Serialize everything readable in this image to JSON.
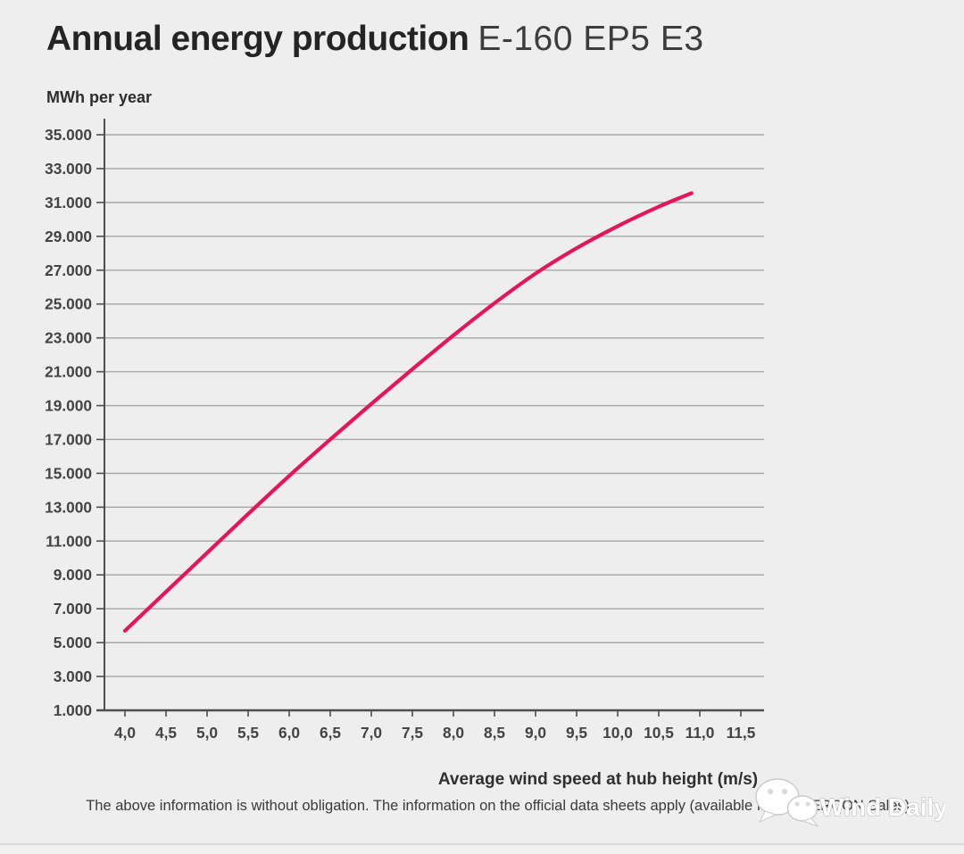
{
  "page": {
    "title_bold": "Annual energy production",
    "title_light": "E-160 EP5 E3"
  },
  "chart_data": {
    "type": "line",
    "title": "Annual energy production E-160 EP5 E3",
    "ylabel": "MWh per year",
    "xlabel": "Average wind speed at hub height (m/s)",
    "xlim": [
      3.75,
      11.9
    ],
    "ylim": [
      1000,
      35000
    ],
    "grid": "horizontal",
    "legend": "none",
    "y_ticks": [
      {
        "value": 1000,
        "label": "1.000"
      },
      {
        "value": 3000,
        "label": "3.000"
      },
      {
        "value": 5000,
        "label": "5.000"
      },
      {
        "value": 7000,
        "label": "7.000"
      },
      {
        "value": 9000,
        "label": "9.000"
      },
      {
        "value": 11000,
        "label": "11.000"
      },
      {
        "value": 13000,
        "label": "13.000"
      },
      {
        "value": 15000,
        "label": "15.000"
      },
      {
        "value": 17000,
        "label": "17.000"
      },
      {
        "value": 19000,
        "label": "19.000"
      },
      {
        "value": 21000,
        "label": "21.000"
      },
      {
        "value": 23000,
        "label": "23.000"
      },
      {
        "value": 25000,
        "label": "25.000"
      },
      {
        "value": 27000,
        "label": "27.000"
      },
      {
        "value": 29000,
        "label": "29.000"
      },
      {
        "value": 31000,
        "label": "31.000"
      },
      {
        "value": 33000,
        "label": "33.000"
      },
      {
        "value": 35000,
        "label": "35.000"
      }
    ],
    "x_ticks": [
      {
        "value": 4.0,
        "label": "4,0"
      },
      {
        "value": 4.5,
        "label": "4,5"
      },
      {
        "value": 5.0,
        "label": "5,0"
      },
      {
        "value": 5.5,
        "label": "5,5"
      },
      {
        "value": 6.0,
        "label": "6,0"
      },
      {
        "value": 6.5,
        "label": "6,5"
      },
      {
        "value": 7.0,
        "label": "7,0"
      },
      {
        "value": 7.5,
        "label": "7,5"
      },
      {
        "value": 8.0,
        "label": "8,0"
      },
      {
        "value": 8.5,
        "label": "8,5"
      },
      {
        "value": 9.0,
        "label": "9,0"
      },
      {
        "value": 9.5,
        "label": "9,5"
      },
      {
        "value": 10.0,
        "label": "10,0"
      },
      {
        "value": 10.5,
        "label": "10,5"
      },
      {
        "value": 11.0,
        "label": "11,0"
      },
      {
        "value": 11.5,
        "label": "11,5"
      }
    ],
    "series": [
      {
        "name": "Annual energy production E-160 EP5 E3",
        "color": "#e4155d",
        "points": [
          {
            "x": 4.0,
            "y": 5700
          },
          {
            "x": 4.5,
            "y": 8000
          },
          {
            "x": 5.0,
            "y": 10300
          },
          {
            "x": 5.5,
            "y": 12600
          },
          {
            "x": 6.0,
            "y": 14850
          },
          {
            "x": 6.5,
            "y": 17000
          },
          {
            "x": 7.0,
            "y": 19100
          },
          {
            "x": 7.5,
            "y": 21150
          },
          {
            "x": 8.0,
            "y": 23150
          },
          {
            "x": 8.5,
            "y": 25050
          },
          {
            "x": 9.0,
            "y": 26800
          },
          {
            "x": 9.5,
            "y": 28300
          },
          {
            "x": 10.0,
            "y": 29600
          },
          {
            "x": 10.5,
            "y": 30750
          },
          {
            "x": 10.9,
            "y": 31550
          }
        ]
      }
    ],
    "colors": {
      "background": "#eeeeee",
      "gridline": "#a6a6a6",
      "axis": "#4e4e4e",
      "tick_label": "#434343",
      "curve": "#e4155d"
    }
  },
  "footer": {
    "disclaimer": "The above information is without obligation. The information on the official data sheets apply (available from ENERCON Sales)."
  },
  "watermark": {
    "icon": "wechat-logo-icon",
    "label": "Wind Daily"
  }
}
